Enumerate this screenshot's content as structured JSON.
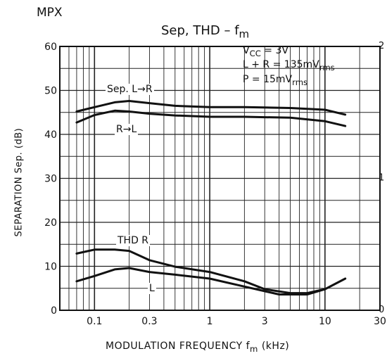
{
  "header": {
    "section": "MPX",
    "title_main": "Sep, THD  –  f",
    "title_sub": "m"
  },
  "conditions": {
    "vcc_main": "V",
    "vcc_sub": "CC",
    "vcc_val": " = 3V",
    "lr_main": "L + R = 135mV",
    "lr_sub": "rms",
    "p_main": "P = 15mV",
    "p_sub": "rms"
  },
  "axes": {
    "xlabel_main": "MODULATION  FREQUENCY    f",
    "xlabel_sub": "m",
    "xlabel_unit": "   (kHz)",
    "ylabel": "SEPARATION   Sep.   (dB)"
  },
  "series_labels": {
    "sep_lr": "Sep. L→R",
    "sep_rl": "R→L",
    "thd_r": "THD  R",
    "thd_l": "L"
  },
  "chart_data": {
    "type": "line",
    "x_scale": "log",
    "xlim": [
      0.05,
      30
    ],
    "ylim": [
      0,
      60
    ],
    "y2lim": [
      0,
      2
    ],
    "x_ticks": [
      {
        "v": 0.1,
        "label": "0.1"
      },
      {
        "v": 0.3,
        "label": "0.3"
      },
      {
        "v": 1,
        "label": "1"
      },
      {
        "v": 3,
        "label": "3"
      },
      {
        "v": 10,
        "label": "10"
      },
      {
        "v": 30,
        "label": "30"
      }
    ],
    "y_ticks": [
      {
        "v": 0,
        "label": "0"
      },
      {
        "v": 10,
        "label": "10"
      },
      {
        "v": 20,
        "label": "20"
      },
      {
        "v": 30,
        "label": "30"
      },
      {
        "v": 40,
        "label": "40"
      },
      {
        "v": 50,
        "label": "50"
      },
      {
        "v": 60,
        "label": "60"
      }
    ],
    "y2_ticks": [
      {
        "v": 0,
        "label": "0"
      },
      {
        "v": 1,
        "label": "1"
      },
      {
        "v": 2,
        "label": "2"
      }
    ],
    "series": [
      {
        "name": "Sep. L→R",
        "axis": "left",
        "points": [
          [
            0.07,
            45.2
          ],
          [
            0.1,
            46.2
          ],
          [
            0.15,
            47.3
          ],
          [
            0.2,
            47.6
          ],
          [
            0.3,
            47.1
          ],
          [
            0.5,
            46.5
          ],
          [
            1,
            46.2
          ],
          [
            2,
            46.2
          ],
          [
            5,
            46.0
          ],
          [
            10,
            45.6
          ],
          [
            15,
            44.5
          ]
        ]
      },
      {
        "name": "R→L",
        "axis": "left",
        "points": [
          [
            0.07,
            42.7
          ],
          [
            0.1,
            44.4
          ],
          [
            0.15,
            45.4
          ],
          [
            0.2,
            45.2
          ],
          [
            0.3,
            44.7
          ],
          [
            0.5,
            44.3
          ],
          [
            1,
            44.0
          ],
          [
            2,
            44.0
          ],
          [
            5,
            43.8
          ],
          [
            10,
            43.0
          ],
          [
            15,
            41.9
          ]
        ]
      },
      {
        "name": "THD R",
        "axis": "right",
        "points": [
          [
            0.07,
            0.43
          ],
          [
            0.1,
            0.46
          ],
          [
            0.15,
            0.46
          ],
          [
            0.2,
            0.45
          ],
          [
            0.3,
            0.38
          ],
          [
            0.5,
            0.33
          ],
          [
            1,
            0.29
          ],
          [
            2,
            0.22
          ],
          [
            3,
            0.16
          ],
          [
            5,
            0.13
          ],
          [
            7,
            0.13
          ],
          [
            10,
            0.16
          ]
        ]
      },
      {
        "name": "L",
        "axis": "right",
        "points": [
          [
            0.07,
            0.22
          ],
          [
            0.1,
            0.26
          ],
          [
            0.15,
            0.31
          ],
          [
            0.2,
            0.32
          ],
          [
            0.3,
            0.29
          ],
          [
            0.5,
            0.27
          ],
          [
            1,
            0.24
          ],
          [
            2,
            0.18
          ],
          [
            4,
            0.12
          ],
          [
            7,
            0.12
          ],
          [
            10,
            0.16
          ],
          [
            15,
            0.24
          ]
        ]
      }
    ]
  }
}
